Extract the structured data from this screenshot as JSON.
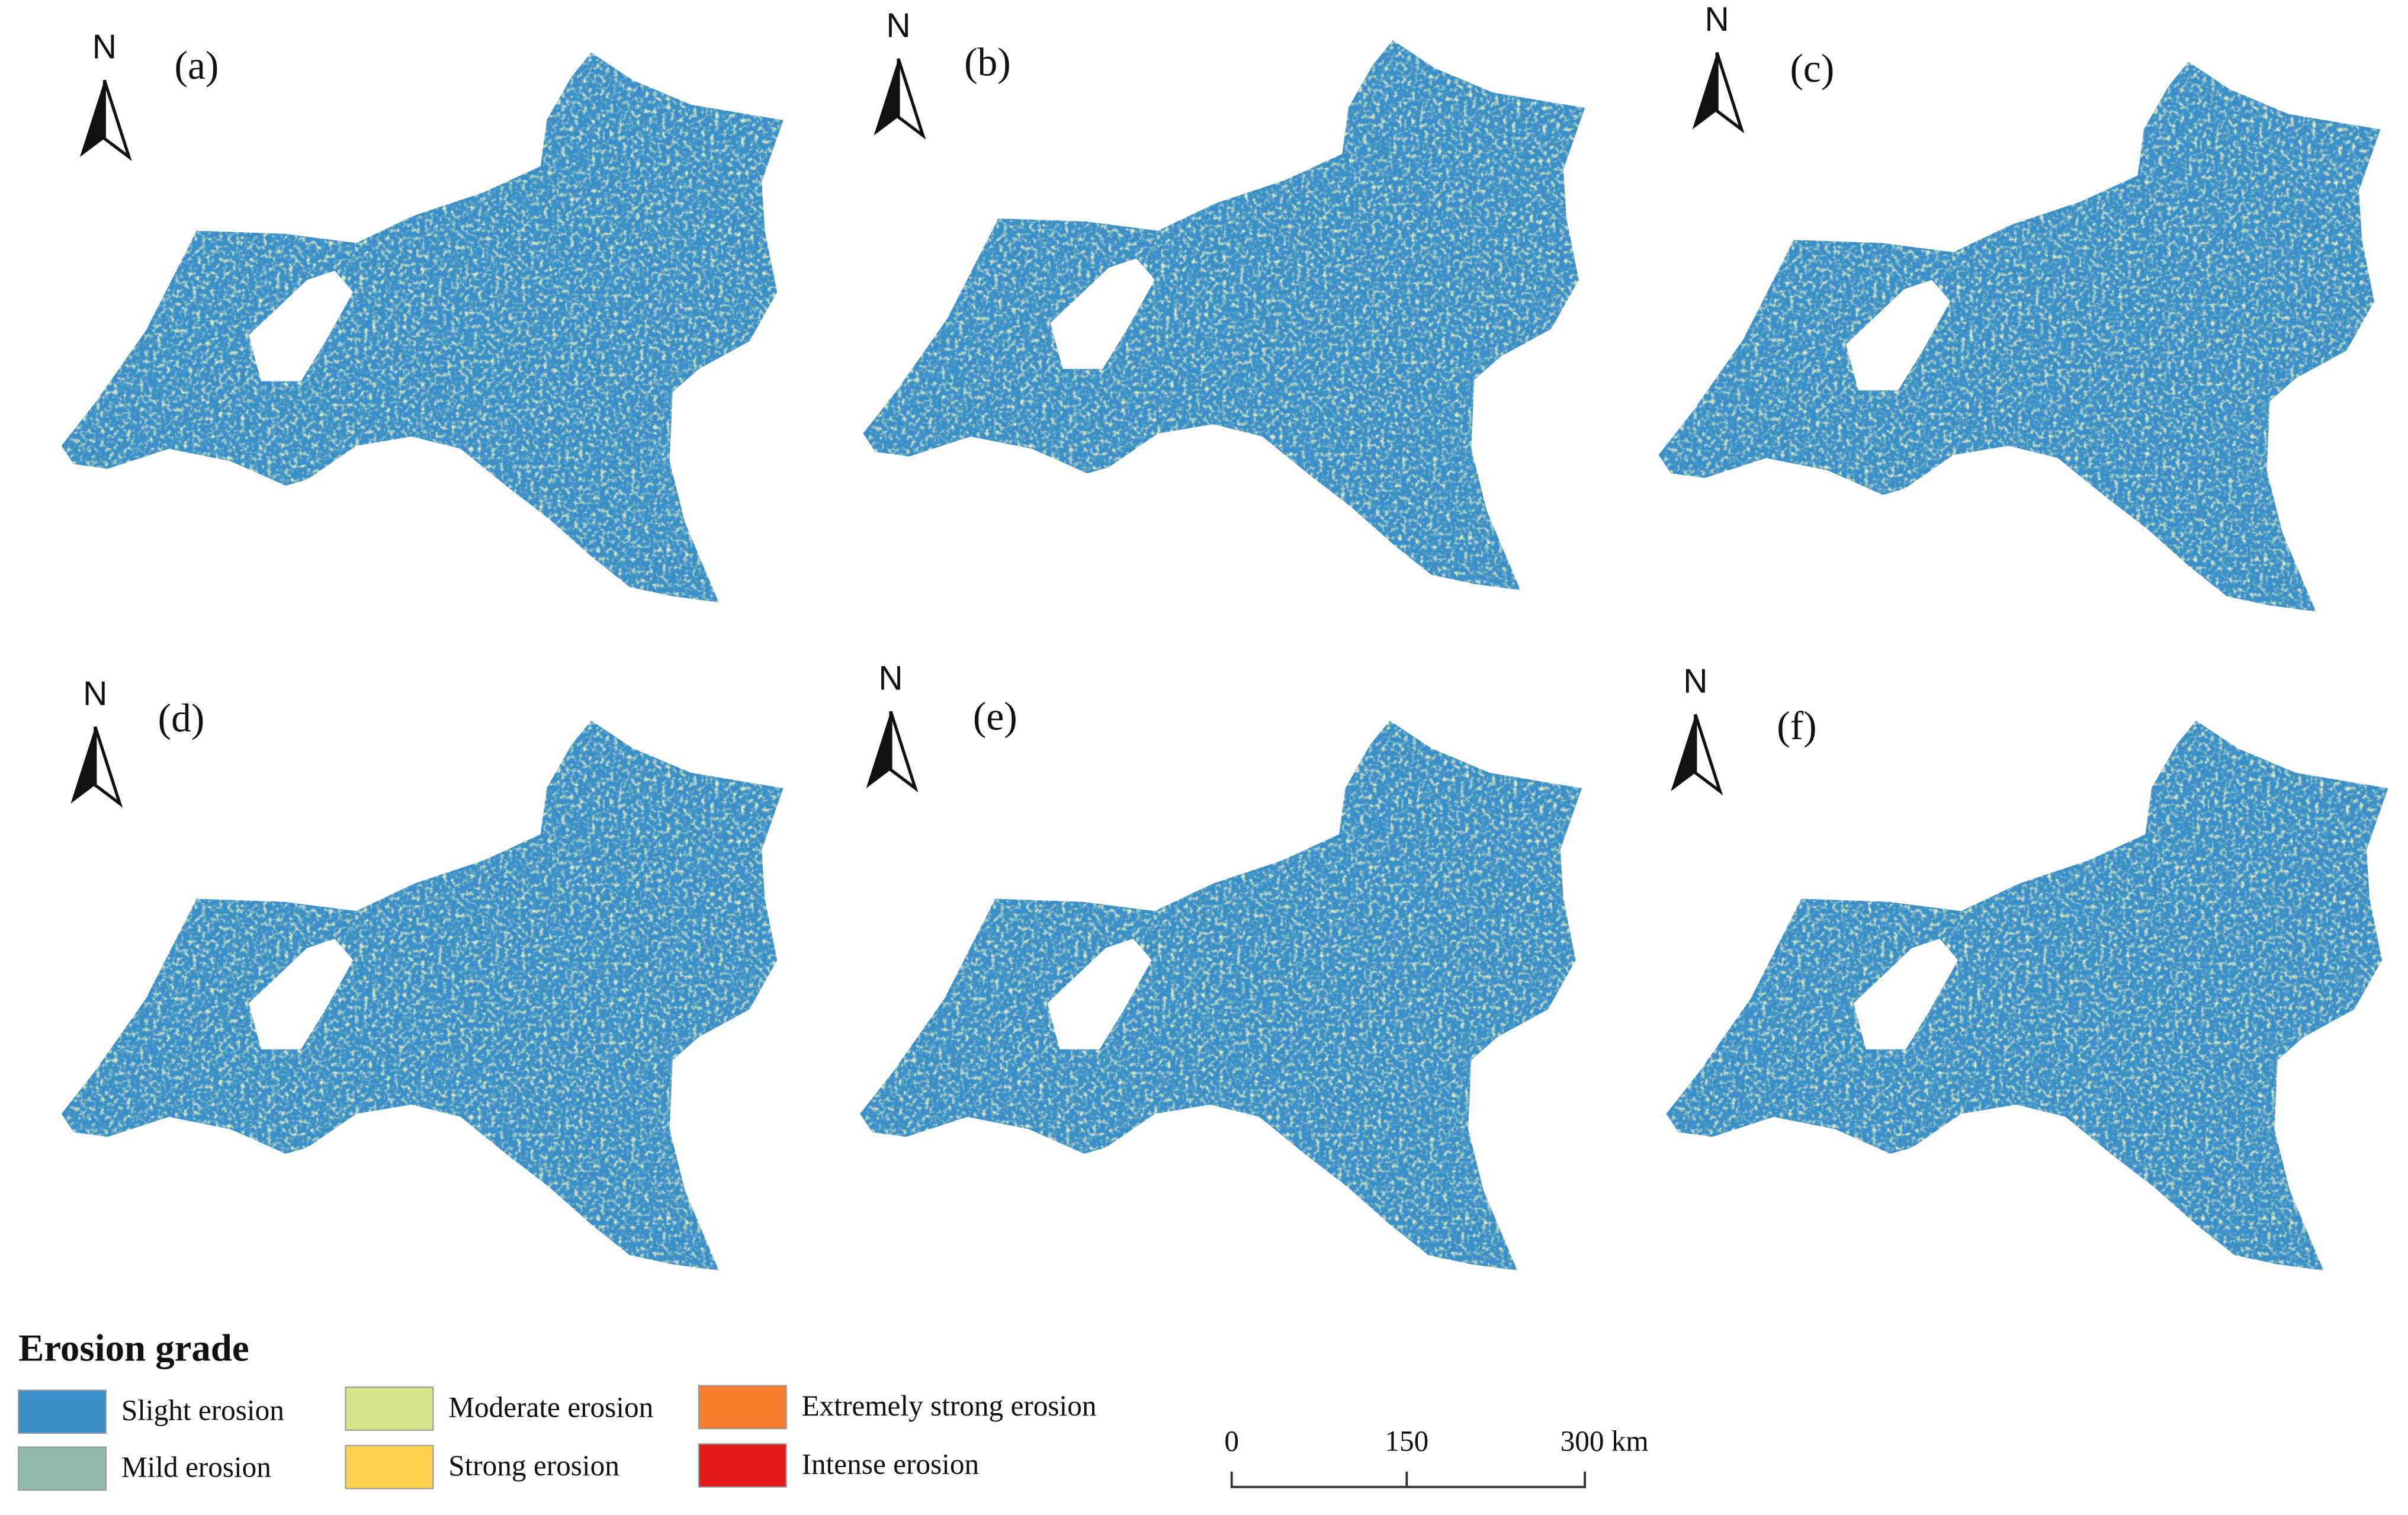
{
  "panels": [
    {
      "label": "(a)",
      "north": "N"
    },
    {
      "label": "(b)",
      "north": "N"
    },
    {
      "label": "(c)",
      "north": "N"
    },
    {
      "label": "(d)",
      "north": "N"
    },
    {
      "label": "(e)",
      "north": "N"
    },
    {
      "label": "(f)",
      "north": "N"
    }
  ],
  "legend": {
    "title": "Erosion grade",
    "items": [
      {
        "label": "Slight erosion",
        "color": "#3a8fc8"
      },
      {
        "label": "Mild erosion",
        "color": "#8fb9a8"
      },
      {
        "label": "Moderate erosion",
        "color": "#d6e58a"
      },
      {
        "label": "Strong erosion",
        "color": "#fed24f"
      },
      {
        "label": "Extremely strong erosion",
        "color": "#f57c2c"
      },
      {
        "label": "Intense erosion",
        "color": "#e31a1c"
      }
    ]
  },
  "scale_bar": {
    "labels": [
      "0",
      "150",
      "300 km"
    ]
  }
}
